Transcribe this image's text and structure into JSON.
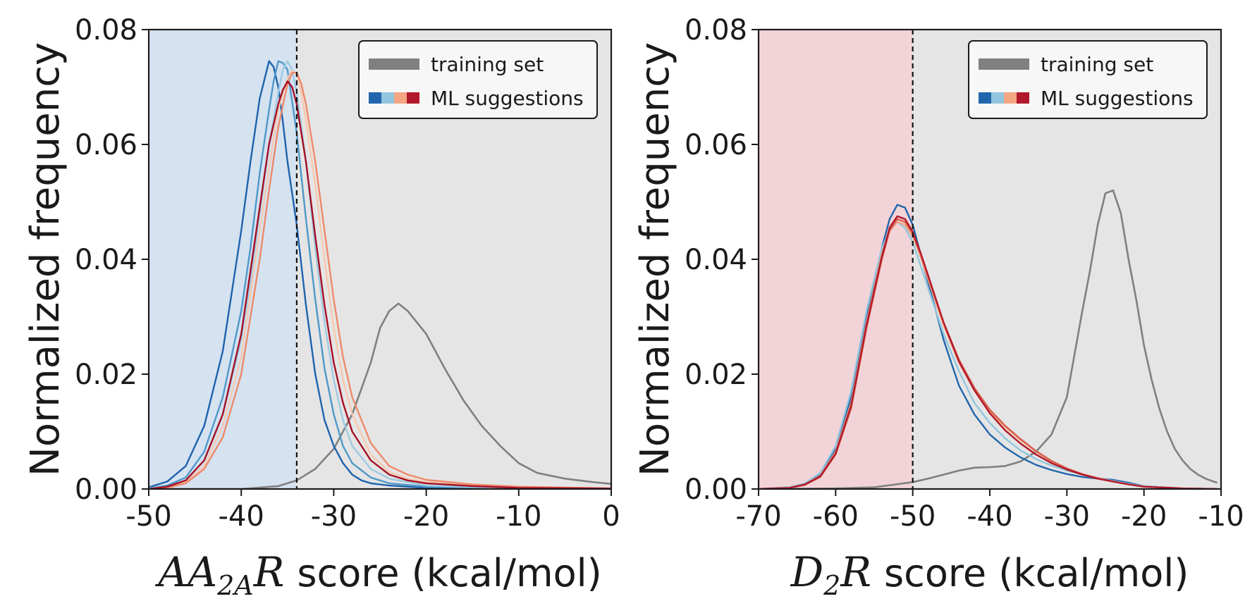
{
  "chart_data": [
    {
      "type": "line",
      "ylabel": "Normalized frequency",
      "xlabel": {
        "var_main": "AA",
        "var_sub": "2A",
        "var_tail": "R",
        "unit_text": "score (kcal/mol)"
      },
      "xlim": [
        -50,
        0
      ],
      "ylim": [
        0,
        0.08
      ],
      "xticks": [
        -50,
        -40,
        -30,
        -20,
        -10,
        0
      ],
      "yticks": [
        "0.00",
        "0.02",
        "0.04",
        "0.06",
        "0.08"
      ],
      "threshold": -34,
      "left_region_color": "#d5e2f0",
      "right_region_color": "#e5e5e5",
      "legend": {
        "position": "top-right",
        "entries": [
          "training set",
          "ML suggestions"
        ],
        "training_color": "#808080",
        "ml_colors": [
          "#2166ac",
          "#92c5de",
          "#f4a582",
          "#b2182b"
        ]
      },
      "series": [
        {
          "role": "training",
          "color": "#808080",
          "x": [
            -50,
            -40,
            -36,
            -34,
            -32,
            -30,
            -28,
            -26,
            -25,
            -24,
            -23,
            -22,
            -20,
            -18,
            -16,
            -14,
            -12,
            -10,
            -8,
            -5,
            -2,
            0
          ],
          "y": [
            0,
            0,
            0.0005,
            0.0015,
            0.0035,
            0.007,
            0.013,
            0.022,
            0.028,
            0.031,
            0.0323,
            0.031,
            0.027,
            0.021,
            0.0155,
            0.011,
            0.0075,
            0.0045,
            0.0028,
            0.0018,
            0.0012,
            0.0009
          ]
        },
        {
          "color": "#1e63ad",
          "x": [
            -50,
            -48,
            -46,
            -44,
            -42,
            -40,
            -39,
            -38,
            -37,
            -36.5,
            -36,
            -35.5,
            -35,
            -34,
            -33,
            -32,
            -31,
            -30,
            -29,
            -28,
            -27,
            -26,
            -24,
            -20,
            -10,
            0
          ],
          "y": [
            0.0003,
            0.0013,
            0.004,
            0.011,
            0.024,
            0.045,
            0.057,
            0.068,
            0.0745,
            0.0735,
            0.07,
            0.064,
            0.057,
            0.046,
            0.032,
            0.02,
            0.012,
            0.0075,
            0.0045,
            0.0025,
            0.0015,
            0.001,
            0.0006,
            0.0002,
            0.0001,
            0
          ]
        },
        {
          "color": "#4f98c9",
          "x": [
            -50,
            -48,
            -46,
            -44,
            -42,
            -40,
            -39,
            -38,
            -37,
            -36.5,
            -36,
            -35.5,
            -35,
            -34,
            -33,
            -32,
            -31,
            -30,
            -29,
            -28,
            -26,
            -24,
            -20,
            -10,
            0
          ],
          "y": [
            0.0001,
            0.0006,
            0.002,
            0.0065,
            0.016,
            0.031,
            0.042,
            0.055,
            0.066,
            0.071,
            0.0745,
            0.0742,
            0.073,
            0.062,
            0.047,
            0.033,
            0.021,
            0.013,
            0.0075,
            0.0045,
            0.002,
            0.001,
            0.0004,
            0.0001,
            0
          ]
        },
        {
          "color": "#9ecae1",
          "x": [
            -50,
            -48,
            -46,
            -44,
            -42,
            -40,
            -39,
            -38,
            -37,
            -36,
            -35.5,
            -35,
            -34.5,
            -34,
            -33,
            -32,
            -31,
            -30,
            -29,
            -28,
            -26,
            -24,
            -20,
            -10,
            0
          ],
          "y": [
            0.0001,
            0.0004,
            0.0015,
            0.005,
            0.013,
            0.026,
            0.036,
            0.048,
            0.06,
            0.069,
            0.073,
            0.0745,
            0.073,
            0.069,
            0.057,
            0.042,
            0.029,
            0.019,
            0.012,
            0.0075,
            0.0035,
            0.0018,
            0.0006,
            0.0001,
            0
          ]
        },
        {
          "color": "#f7c9b0",
          "x": [
            -50,
            -48,
            -46,
            -44,
            -42,
            -40,
            -38,
            -37,
            -36,
            -35,
            -34.5,
            -34,
            -33.5,
            -33,
            -32,
            -31,
            -30,
            -29,
            -28,
            -26,
            -24,
            -22,
            -20,
            -15,
            -10,
            0
          ],
          "y": [
            0,
            0.0003,
            0.0012,
            0.004,
            0.011,
            0.023,
            0.045,
            0.056,
            0.066,
            0.0715,
            0.0728,
            0.0722,
            0.069,
            0.064,
            0.053,
            0.04,
            0.028,
            0.019,
            0.013,
            0.006,
            0.003,
            0.0018,
            0.0012,
            0.0006,
            0.0003,
            0.0001
          ]
        },
        {
          "color": "#ee8a6a",
          "x": [
            -50,
            -48,
            -46,
            -44,
            -42,
            -40,
            -38,
            -37,
            -36,
            -35,
            -34.5,
            -34,
            -33.5,
            -33,
            -32,
            -31,
            -30,
            -29,
            -28,
            -26,
            -24,
            -22,
            -20,
            -15,
            -10,
            0
          ],
          "y": [
            0,
            0.0002,
            0.001,
            0.0035,
            0.009,
            0.02,
            0.04,
            0.052,
            0.063,
            0.0705,
            0.0725,
            0.0725,
            0.0705,
            0.067,
            0.057,
            0.045,
            0.033,
            0.023,
            0.016,
            0.008,
            0.004,
            0.0025,
            0.0016,
            0.0008,
            0.0004,
            0.0001
          ]
        },
        {
          "color": "#a50f26",
          "x": [
            -50,
            -48,
            -46,
            -44,
            -42,
            -40,
            -38,
            -37,
            -36,
            -35.5,
            -35,
            -34.5,
            -34,
            -33,
            -32,
            -31,
            -30,
            -29,
            -28,
            -26,
            -24,
            -22,
            -20,
            -15,
            -10,
            0
          ],
          "y": [
            0,
            0.0004,
            0.0015,
            0.005,
            0.013,
            0.027,
            0.049,
            0.06,
            0.067,
            0.0695,
            0.071,
            0.07,
            0.067,
            0.057,
            0.044,
            0.032,
            0.022,
            0.015,
            0.01,
            0.005,
            0.0025,
            0.0015,
            0.001,
            0.0005,
            0.0002,
            0.0001
          ]
        }
      ]
    },
    {
      "type": "line",
      "ylabel": "Normalized frequency",
      "xlabel": {
        "var_main": "D",
        "var_sub": "2",
        "var_tail": "R",
        "unit_text": "score (kcal/mol)"
      },
      "xlim": [
        -70,
        -10
      ],
      "ylim": [
        0,
        0.08
      ],
      "xticks": [
        -70,
        -60,
        -50,
        -40,
        -30,
        -20,
        -10
      ],
      "yticks": [
        "0.00",
        "0.02",
        "0.04",
        "0.06",
        "0.08"
      ],
      "threshold": -50,
      "left_region_color": "#f2d4d8",
      "right_region_color": "#e5e5e5",
      "legend": {
        "position": "top-right",
        "entries": [
          "training set",
          "ML suggestions"
        ],
        "training_color": "#808080",
        "ml_colors": [
          "#2166ac",
          "#92c5de",
          "#f4a582",
          "#b2182b"
        ]
      },
      "series": [
        {
          "role": "training",
          "color": "#808080",
          "x": [
            -70,
            -60,
            -55,
            -50,
            -48,
            -46,
            -44,
            -42,
            -40,
            -38,
            -36,
            -34,
            -32,
            -30,
            -28,
            -27,
            -26,
            -25,
            -24,
            -23,
            -22,
            -21,
            -20,
            -19,
            -18,
            -17,
            -16,
            -15,
            -14,
            -13,
            -12,
            -11,
            -10.5
          ],
          "y": [
            0,
            0.0001,
            0.0003,
            0.0012,
            0.0018,
            0.0025,
            0.0032,
            0.0037,
            0.0038,
            0.004,
            0.0048,
            0.0065,
            0.0095,
            0.016,
            0.031,
            0.038,
            0.046,
            0.0515,
            0.052,
            0.048,
            0.04,
            0.033,
            0.025,
            0.019,
            0.014,
            0.01,
            0.007,
            0.005,
            0.0035,
            0.0025,
            0.0018,
            0.0013,
            0.0011
          ]
        },
        {
          "color": "#2166ac",
          "x": [
            -70,
            -66,
            -64,
            -62,
            -60,
            -58,
            -56,
            -54,
            -53,
            -52,
            -51,
            -50,
            -49,
            -48,
            -47,
            -46,
            -45,
            -44,
            -43,
            -42,
            -40,
            -38,
            -36,
            -34,
            -32,
            -30,
            -28,
            -26,
            -24,
            -22,
            -20,
            -15,
            -10.5
          ],
          "y": [
            0,
            0.0003,
            0.0009,
            0.0025,
            0.007,
            0.016,
            0.03,
            0.042,
            0.047,
            0.0495,
            0.049,
            0.046,
            0.041,
            0.036,
            0.031,
            0.026,
            0.022,
            0.018,
            0.0155,
            0.013,
            0.0095,
            0.0072,
            0.0055,
            0.0042,
            0.0033,
            0.0026,
            0.0021,
            0.0018,
            0.0016,
            0.0011,
            0.0005,
            0.0001,
            0
          ]
        },
        {
          "color": "#92c5de",
          "x": [
            -70,
            -66,
            -64,
            -62,
            -60,
            -58,
            -56,
            -54,
            -53,
            -52,
            -51,
            -50,
            -49,
            -48,
            -46,
            -44,
            -42,
            -40,
            -38,
            -36,
            -34,
            -32,
            -30,
            -28,
            -26,
            -24,
            -22,
            -20,
            -15,
            -10.5
          ],
          "y": [
            0,
            0.0003,
            0.001,
            0.0028,
            0.0075,
            0.017,
            0.031,
            0.042,
            0.045,
            0.0465,
            0.0455,
            0.043,
            0.039,
            0.035,
            0.027,
            0.0205,
            0.015,
            0.0115,
            0.0088,
            0.0067,
            0.0052,
            0.0041,
            0.0032,
            0.0025,
            0.0019,
            0.0014,
            0.0009,
            0.0005,
            0.0001,
            0
          ]
        },
        {
          "color": "#f4a582",
          "x": [
            -70,
            -66,
            -64,
            -62,
            -60,
            -58,
            -56,
            -54,
            -53,
            -52,
            -51,
            -50,
            -49,
            -48,
            -46,
            -44,
            -42,
            -40,
            -38,
            -36,
            -34,
            -32,
            -30,
            -28,
            -26,
            -24,
            -22,
            -20,
            -15,
            -10.5
          ],
          "y": [
            0,
            0.0002,
            0.0008,
            0.0023,
            0.0065,
            0.015,
            0.029,
            0.041,
            0.045,
            0.0465,
            0.046,
            0.044,
            0.0405,
            0.0365,
            0.0285,
            0.022,
            0.0172,
            0.0135,
            0.0108,
            0.0085,
            0.0065,
            0.0048,
            0.0035,
            0.0025,
            0.0018,
            0.0013,
            0.0008,
            0.0004,
            0.0001,
            0
          ]
        },
        {
          "color": "#d6604d",
          "x": [
            -70,
            -66,
            -64,
            -62,
            -60,
            -58,
            -56,
            -54,
            -53,
            -52,
            -51,
            -50,
            -49,
            -48,
            -46,
            -44,
            -42,
            -40,
            -38,
            -36,
            -34,
            -32,
            -30,
            -28,
            -26,
            -24,
            -22,
            -20,
            -15,
            -10.5
          ],
          "y": [
            0,
            0.0002,
            0.0007,
            0.0021,
            0.006,
            0.014,
            0.028,
            0.04,
            0.045,
            0.047,
            0.0465,
            0.0445,
            0.041,
            0.037,
            0.029,
            0.0225,
            0.0176,
            0.0138,
            0.011,
            0.0087,
            0.0066,
            0.0049,
            0.0036,
            0.0026,
            0.0019,
            0.0013,
            0.0008,
            0.0004,
            0.0001,
            0
          ]
        },
        {
          "color": "#b2182b",
          "x": [
            -70,
            -66,
            -64,
            -62,
            -60,
            -58,
            -56,
            -54,
            -53,
            -52,
            -51,
            -50,
            -49,
            -48,
            -46,
            -44,
            -42,
            -40,
            -38,
            -36,
            -34,
            -32,
            -30,
            -28,
            -26,
            -24,
            -22,
            -20,
            -15,
            -10.5
          ],
          "y": [
            0,
            0.0002,
            0.0008,
            0.0022,
            0.0062,
            0.0145,
            0.0285,
            0.0405,
            0.0455,
            0.0475,
            0.047,
            0.0448,
            0.0412,
            0.0372,
            0.029,
            0.0222,
            0.0172,
            0.0132,
            0.0102,
            0.0079,
            0.006,
            0.0045,
            0.0034,
            0.0025,
            0.0018,
            0.0013,
            0.0008,
            0.0004,
            0.0001,
            0
          ]
        }
      ]
    }
  ]
}
